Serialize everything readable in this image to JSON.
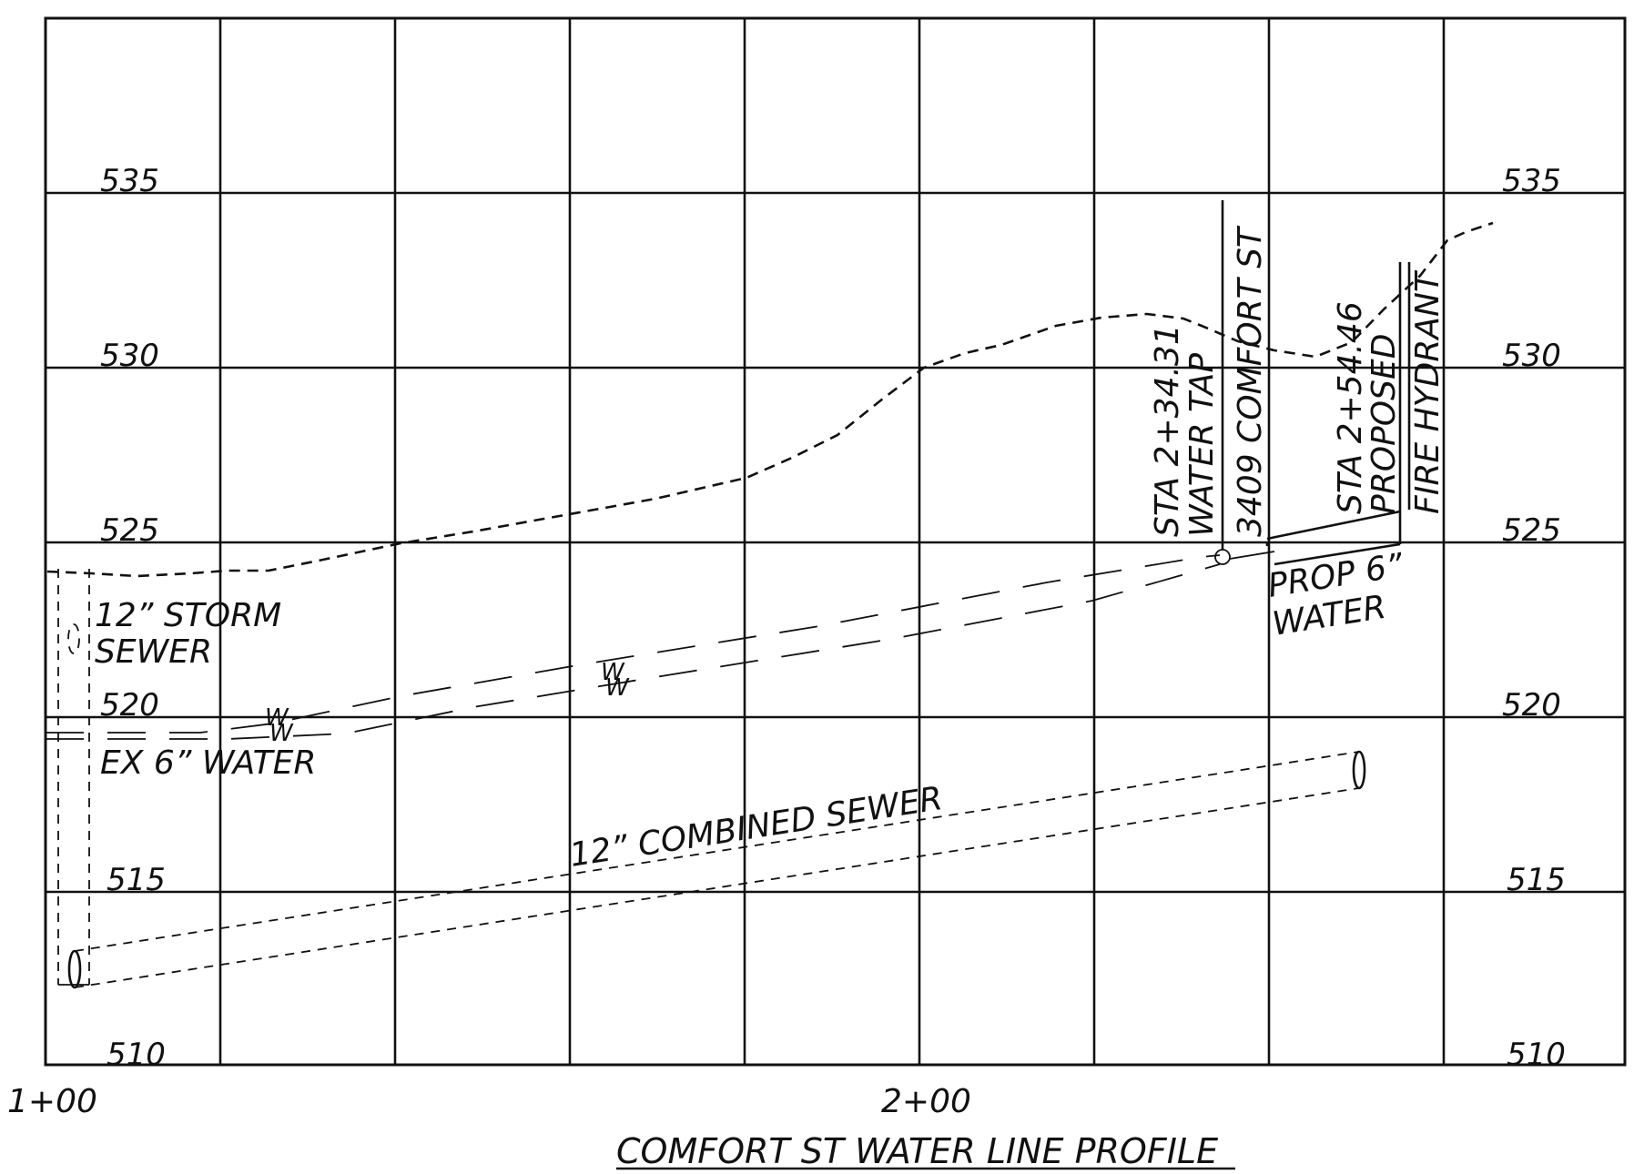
{
  "drawing": {
    "title": "COMFORT ST WATER LINE PROFILE",
    "elevations": [
      "535",
      "530",
      "525",
      "520",
      "515",
      "510"
    ],
    "stations": [
      "1+00",
      "2+00"
    ],
    "notes": {
      "storm_sewer_line1": "12” STORM",
      "storm_sewer_line2": "SEWER",
      "ex_water": "EX 6” WATER",
      "combined_sewer": "12” COMBINED SEWER",
      "water_tap_line1": "STA 2+34.31",
      "water_tap_line2": "WATER TAP",
      "water_tap_line3": "3409 COMFORT ST",
      "hydrant_line1": "STA 2+54.46",
      "hydrant_line2": "PROPOSED",
      "hydrant_line3": "FIRE HYDRANT",
      "prop_water_line1": "PROP 6”",
      "prop_water_line2": "WATER",
      "water_marker": "W"
    }
  }
}
